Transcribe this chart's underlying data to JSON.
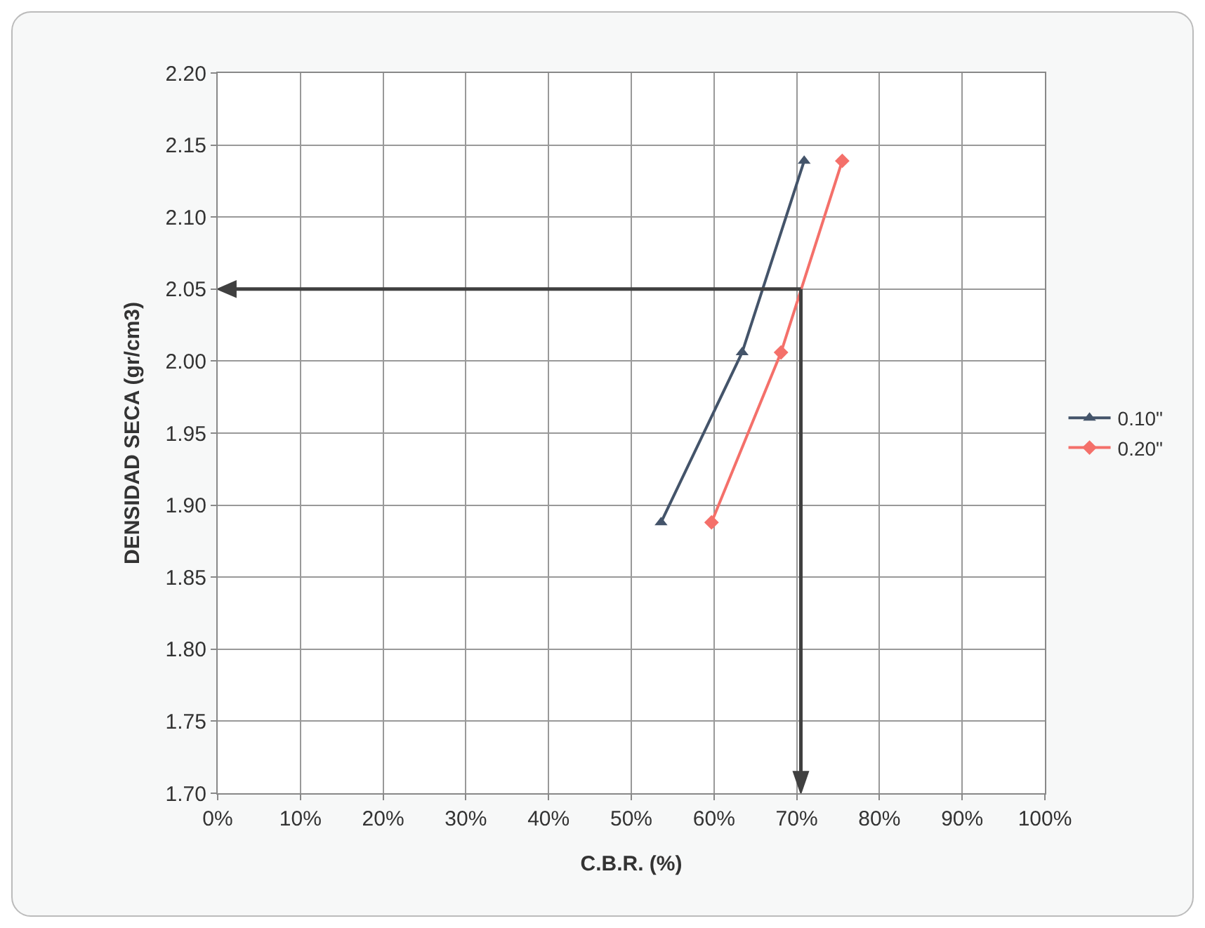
{
  "chart_data": {
    "type": "line",
    "xlabel": "C.B.R. (%)",
    "ylabel": "DENSIDAD SECA (gr/cm3)",
    "xlim": [
      0,
      100
    ],
    "xticks": [
      {
        "value": 0,
        "label": "0%"
      },
      {
        "value": 10,
        "label": "10%"
      },
      {
        "value": 20,
        "label": "20%"
      },
      {
        "value": 30,
        "label": "30%"
      },
      {
        "value": 40,
        "label": "40%"
      },
      {
        "value": 50,
        "label": "50%"
      },
      {
        "value": 60,
        "label": "60%"
      },
      {
        "value": 70,
        "label": "70%"
      },
      {
        "value": 80,
        "label": "80%"
      },
      {
        "value": 90,
        "label": "90%"
      },
      {
        "value": 100,
        "label": "100%"
      }
    ],
    "ylim": [
      1.7,
      2.2
    ],
    "yticks": [
      {
        "value": 1.7,
        "label": "1.70"
      },
      {
        "value": 1.75,
        "label": "1.75"
      },
      {
        "value": 1.8,
        "label": "1.80"
      },
      {
        "value": 1.85,
        "label": "1.85"
      },
      {
        "value": 1.9,
        "label": "1.90"
      },
      {
        "value": 1.95,
        "label": "1.95"
      },
      {
        "value": 2.0,
        "label": "2.00"
      },
      {
        "value": 2.05,
        "label": "2.05"
      },
      {
        "value": 2.1,
        "label": "2.10"
      },
      {
        "value": 2.15,
        "label": "2.15"
      },
      {
        "value": 2.2,
        "label": "2.20"
      }
    ],
    "series": [
      {
        "name": "0.10\"",
        "color": "#44546a",
        "marker": "triangle",
        "x": [
          53.6,
          63.4,
          70.9
        ],
        "values": [
          1.888,
          2.006,
          2.139
        ]
      },
      {
        "name": "0.20\"",
        "color": "#f4706a",
        "marker": "diamond",
        "x": [
          59.7,
          68.1,
          75.5
        ],
        "values": [
          1.888,
          2.006,
          2.139
        ]
      }
    ],
    "ref_lines": [
      {
        "axis": "y",
        "value": 2.05,
        "color": "#404040"
      },
      {
        "axis": "x",
        "value": 70.5,
        "color": "#404040"
      }
    ],
    "grid": true,
    "legend": "right"
  }
}
